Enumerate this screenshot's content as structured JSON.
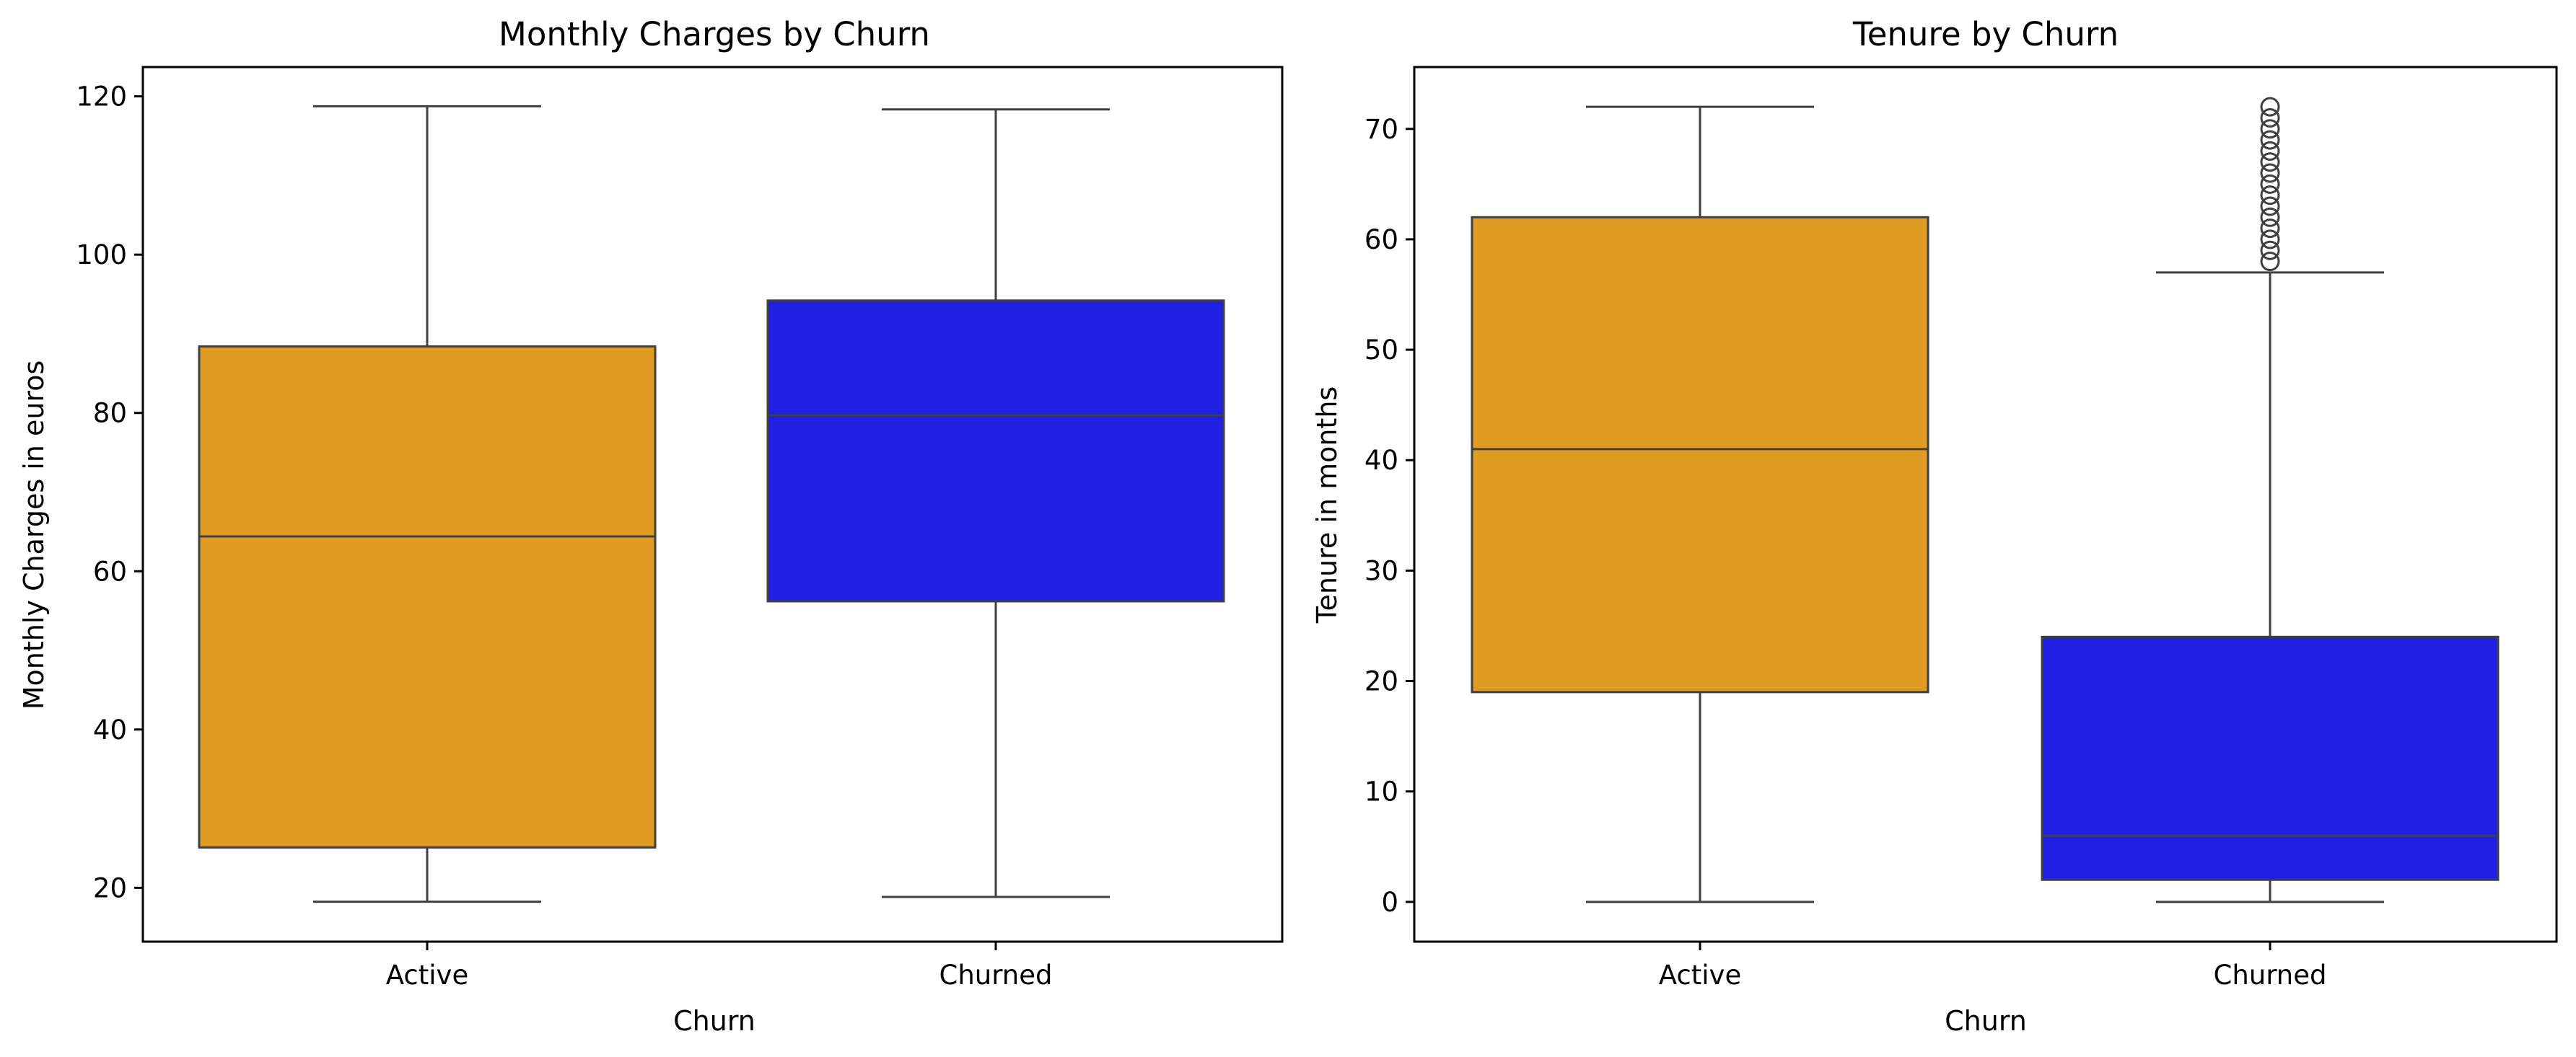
{
  "chart_data": [
    {
      "type": "box",
      "title": "Monthly Charges by Churn",
      "xlabel": "Churn",
      "ylabel": "Monthly Charges in euros",
      "ylim": [
        13.2,
        123.7
      ],
      "yticks": [
        20,
        40,
        60,
        80,
        100,
        120
      ],
      "categories": [
        "Active",
        "Churned"
      ],
      "colors": [
        "#e09c22",
        "#2020e3"
      ],
      "boxes": [
        {
          "category": "Active",
          "whisker_low": 18.25,
          "q1": 25.1,
          "median": 64.4,
          "q3": 88.4,
          "whisker_high": 118.75,
          "outliers": []
        },
        {
          "category": "Churned",
          "whisker_low": 18.85,
          "q1": 56.2,
          "median": 79.7,
          "q3": 94.2,
          "whisker_high": 118.35,
          "outliers": []
        }
      ]
    },
    {
      "type": "box",
      "title": "Tenure by Churn",
      "xlabel": "Churn",
      "ylabel": "Tenure in months",
      "ylim": [
        -3.6,
        75.6
      ],
      "yticks": [
        0,
        10,
        20,
        30,
        40,
        50,
        60,
        70
      ],
      "categories": [
        "Active",
        "Churned"
      ],
      "colors": [
        "#e09c22",
        "#2020e3"
      ],
      "boxes": [
        {
          "category": "Active",
          "whisker_low": 0,
          "q1": 19,
          "median": 41,
          "q3": 62,
          "whisker_high": 72,
          "outliers": []
        },
        {
          "category": "Churned",
          "whisker_low": 0,
          "q1": 2,
          "median": 6,
          "q3": 24,
          "whisker_high": 57,
          "outliers": [
            58,
            59,
            60,
            61,
            62,
            63,
            64,
            65,
            66,
            67,
            68,
            69,
            70,
            71,
            72
          ]
        }
      ]
    }
  ],
  "style": {
    "box_edge": "#404040",
    "axis_color": "#000000"
  }
}
